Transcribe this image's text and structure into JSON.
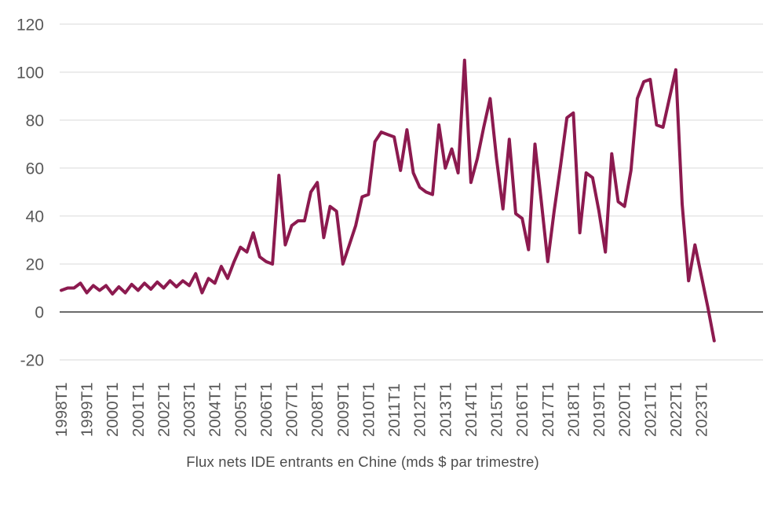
{
  "chart_data": {
    "type": "line",
    "caption": "Flux nets IDE entrants en Chine (mds $ par trimestre)",
    "x_start": "1998T1",
    "x_frequency": "quarterly",
    "x_tick_labels": [
      "1998T1",
      "1999T1",
      "2000T1",
      "2001T1",
      "2002T1",
      "2003T1",
      "2004T1",
      "2005T1",
      "2006T1",
      "2007T1",
      "2008T1",
      "2009T1",
      "2010T1",
      "2011T1",
      "2012T1",
      "2013T1",
      "2014T1",
      "2015T1",
      "2016T1",
      "2017T1",
      "2018T1",
      "2019T1",
      "2020T1",
      "2021T1",
      "2022T1",
      "2023T1"
    ],
    "y_ticks": [
      120,
      100,
      80,
      60,
      40,
      20,
      0,
      -20
    ],
    "ylim": [
      -20,
      120
    ],
    "grid": "horizontal",
    "legend_position": "none",
    "line_color": "#8c1a4f",
    "zero_line_color": "#3a3a3a",
    "gridline_color": "#d9d9d9",
    "tick_label_color": "#595959",
    "values": [
      9,
      10,
      10,
      12,
      8,
      11,
      9,
      11,
      7.5,
      10.5,
      8,
      11.5,
      9,
      12,
      9.5,
      12.5,
      10,
      13,
      10.5,
      13,
      11,
      16,
      8,
      14,
      12,
      19,
      14,
      21,
      27,
      25,
      33,
      23,
      21,
      20,
      57,
      28,
      36,
      38,
      38,
      50,
      54,
      31,
      44,
      42,
      20,
      28,
      36,
      48,
      49,
      71,
      75,
      74,
      73,
      59,
      76,
      58,
      52,
      50,
      49,
      78,
      60,
      68,
      58,
      105,
      54,
      64,
      77,
      89,
      64,
      43,
      72,
      41,
      39,
      26,
      70,
      46,
      21,
      42,
      61,
      81,
      83,
      33,
      58,
      56,
      42,
      25,
      66,
      46,
      44,
      59,
      89,
      96,
      97,
      78,
      77,
      89,
      101,
      45,
      13,
      28,
      15,
      2,
      -12
    ]
  }
}
